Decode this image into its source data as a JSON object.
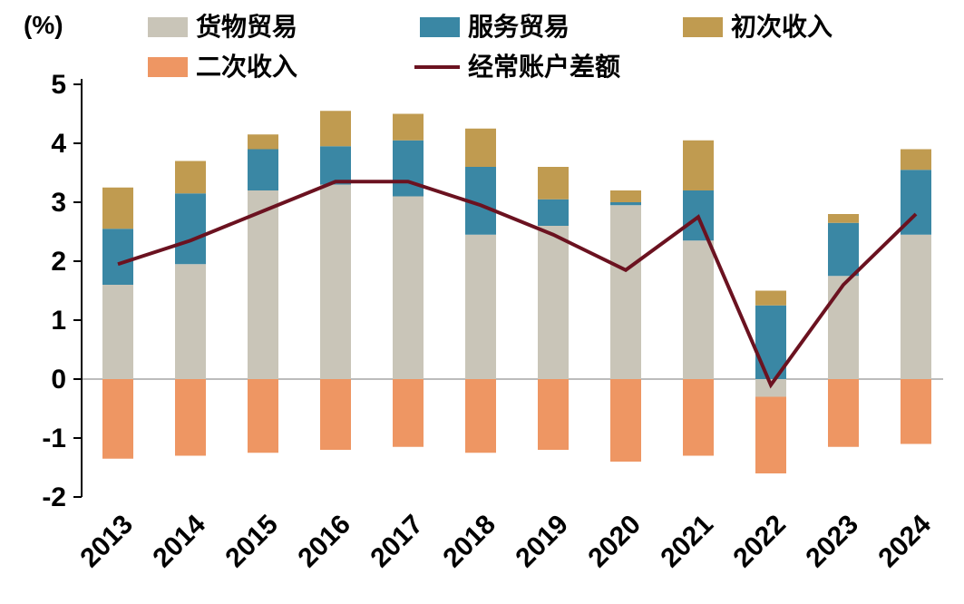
{
  "chart_data": {
    "type": "bar",
    "subtype": "stacked-bar-with-line",
    "unit_label": "(%)",
    "categories": [
      "2013",
      "2014",
      "2015",
      "2016",
      "2017",
      "2018",
      "2019",
      "2020",
      "2021",
      "2022",
      "2023",
      "2024"
    ],
    "series": [
      {
        "name": "货物贸易",
        "color": "#c9c5b8",
        "values": [
          1.6,
          1.95,
          3.2,
          3.3,
          3.1,
          2.45,
          2.6,
          2.95,
          2.35,
          -0.3,
          1.75,
          2.45
        ]
      },
      {
        "name": "服务贸易",
        "color": "#3a87a4",
        "values": [
          0.95,
          1.2,
          0.7,
          0.65,
          0.95,
          1.15,
          0.45,
          0.05,
          0.85,
          1.25,
          0.9,
          1.1
        ]
      },
      {
        "name": "初次收入",
        "color": "#c09b50",
        "values": [
          0.7,
          0.55,
          0.25,
          0.6,
          0.45,
          0.65,
          0.55,
          0.2,
          0.85,
          0.25,
          0.15,
          0.35
        ]
      },
      {
        "name": "二次收入",
        "color": "#ee9663",
        "values": [
          -1.35,
          -1.3,
          -1.25,
          -1.2,
          -1.15,
          -1.25,
          -1.2,
          -1.4,
          -1.3,
          -1.3,
          -1.15,
          -1.1
        ]
      }
    ],
    "line_series": {
      "name": "经常账户差额",
      "color": "#6b1220",
      "values": [
        1.95,
        2.35,
        2.85,
        3.35,
        3.35,
        2.95,
        2.45,
        1.85,
        2.75,
        -0.1,
        1.6,
        2.8
      ]
    },
    "ylim": [
      -2,
      5
    ],
    "yticks": [
      5,
      4,
      3,
      2,
      1,
      0,
      -1,
      -2
    ],
    "grid": "zero-line-only",
    "legend_position": "top",
    "axis_color": "#000000",
    "zero_line_color": "#a6a6a6"
  }
}
